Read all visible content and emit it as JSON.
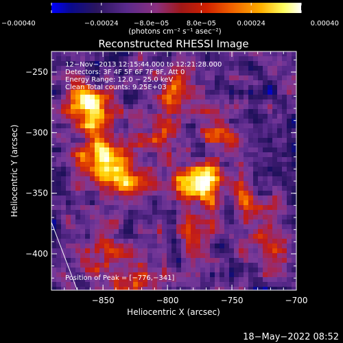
{
  "chart_data": {
    "type": "heatmap",
    "title": "Reconstructed RHESSI Image",
    "xlabel": "Heliocentric X (arcsec)",
    "ylabel": "Heliocentric Y (arcsec)",
    "xlim": [
      -890,
      -700
    ],
    "ylim": [
      -430,
      -233
    ],
    "x_ticks": [
      {
        "value": -850,
        "label": "−850"
      },
      {
        "value": -800,
        "label": "−800"
      },
      {
        "value": -750,
        "label": "−750"
      },
      {
        "value": -700,
        "label": "−700"
      }
    ],
    "y_ticks": [
      {
        "value": -250,
        "label": "−250"
      },
      {
        "value": -300,
        "label": "−300"
      },
      {
        "value": -350,
        "label": "−350"
      },
      {
        "value": -400,
        "label": "−400"
      }
    ],
    "colorbar": {
      "range": [
        -0.0004,
        0.0004
      ],
      "ticks": [
        {
          "value": -0.0004,
          "label": "−0.00040"
        },
        {
          "value": -0.00024,
          "label": "−0.00024"
        },
        {
          "value": -8e-05,
          "label": "−8.0e−05"
        },
        {
          "value": 8e-05,
          "label": "8.0e−05"
        },
        {
          "value": 0.00024,
          "label": "0.00024"
        },
        {
          "value": 0.0004,
          "label": "0.00040"
        }
      ],
      "units": "(photons cm⁻² s⁻¹ asec⁻²)"
    },
    "info": [
      "12−Nov−2013 12:15:44.000 to 12:21:28.000",
      "Detectors: 3F 4F 5F 6F 7F 8F, Att 0",
      "Energy Range: 12.0 − 25.0 keV",
      "Clean     Total counts: 9.25E+03"
    ],
    "peak_label": "Position of Peak = [−776,−341]",
    "peak": {
      "x": -776,
      "y": -341
    },
    "sources": [
      {
        "x": -776,
        "y": -341,
        "amp": 1.0
      },
      {
        "x": -850,
        "y": -325,
        "amp": 0.85
      },
      {
        "x": -865,
        "y": -270,
        "amp": 0.65
      },
      {
        "x": -855,
        "y": -290,
        "amp": 0.6
      },
      {
        "x": -830,
        "y": -340,
        "amp": 0.55
      },
      {
        "x": -810,
        "y": -300,
        "amp": 0.5
      },
      {
        "x": -790,
        "y": -265,
        "amp": 0.45
      },
      {
        "x": -735,
        "y": -360,
        "amp": 0.55
      },
      {
        "x": -720,
        "y": -395,
        "amp": 0.45
      },
      {
        "x": -780,
        "y": -385,
        "amp": 0.35
      },
      {
        "x": -850,
        "y": -395,
        "amp": 0.4
      },
      {
        "x": -820,
        "y": -420,
        "amp": 0.45
      },
      {
        "x": -760,
        "y": -300,
        "amp": 0.35
      }
    ],
    "limb_line": {
      "x": [
        -890,
        -870
      ],
      "y": [
        -374,
        -430
      ]
    },
    "colormap": [
      "#0000ff",
      "#0a0a8c",
      "#1c1058",
      "#3a1a6e",
      "#5a2a8c",
      "#7a3a9a",
      "#9a2a6a",
      "#c01a1a",
      "#e04000",
      "#ff8c00",
      "#ffd000",
      "#ffffa0",
      "#ffffff"
    ]
  },
  "timestamp": "18−May−2022 08:52"
}
